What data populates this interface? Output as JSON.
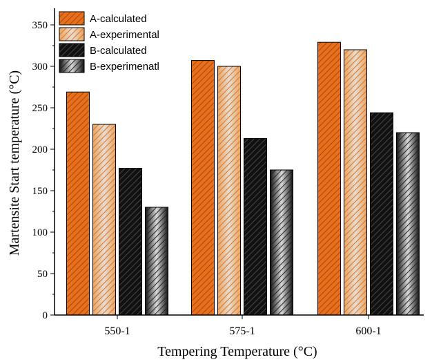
{
  "chart_data": {
    "type": "bar",
    "xlabel": "Tempering Temperature (°C)",
    "ylabel": "Martensite Start temperature (°C)",
    "categories": [
      "550-1",
      "575-1",
      "600-1"
    ],
    "ylim": [
      0,
      370
    ],
    "yticks": [
      0,
      50,
      100,
      150,
      200,
      250,
      300,
      350
    ],
    "grid": false,
    "legend_position": "top-left",
    "series": [
      {
        "name": "A-calculated",
        "values": [
          269,
          307,
          329
        ],
        "color": "#E8701D",
        "pattern": "hatch-dark"
      },
      {
        "name": "A-experimental",
        "values": [
          230,
          300,
          320
        ],
        "color": "#F0B070",
        "pattern": "hatch-light-gradient"
      },
      {
        "name": "B-calculated",
        "values": [
          177,
          213,
          244
        ],
        "color": "#111111",
        "pattern": "hatch-gray"
      },
      {
        "name": "B-experimenatl",
        "values": [
          130,
          175,
          220
        ],
        "color": "#555555",
        "pattern": "hatch-gray-gradient"
      }
    ]
  }
}
